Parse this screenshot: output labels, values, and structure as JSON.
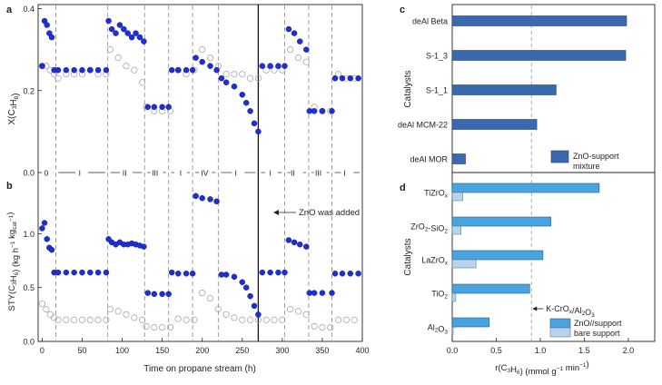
{
  "panels": {
    "a": "a",
    "b": "b",
    "c": "c",
    "d": "d"
  },
  "left": {
    "xlabel": "Time on propane stream (h)",
    "xticks": [
      0,
      50,
      100,
      150,
      200,
      250,
      300,
      350,
      400
    ],
    "a_ylabel": "X(C3H8)",
    "a_yticks": [
      "0.0",
      "0.2",
      "0.4"
    ],
    "b_ylabel": "STY(C3H6) (kg h−1 kgcat−1)",
    "b_yticks": [
      "0.0",
      "0.5",
      "1.0"
    ],
    "stage_labels": [
      {
        "label": "0",
        "t": 5
      },
      {
        "label": "I",
        "t": 47
      },
      {
        "label": "II",
        "t": 103
      },
      {
        "label": "III",
        "t": 141
      },
      {
        "label": "I",
        "t": 173
      },
      {
        "label": "IV",
        "t": 203
      },
      {
        "label": "I",
        "t": 242
      },
      {
        "label": "I",
        "t": 285
      },
      {
        "label": "II",
        "t": 313
      },
      {
        "label": "III",
        "t": 345
      },
      {
        "label": "I",
        "t": 378
      }
    ],
    "stage_boundaries_h": [
      17,
      82,
      128,
      158,
      188,
      220,
      270,
      303,
      333,
      362
    ],
    "zno_added_h": 270,
    "annotation": "ZnO was added"
  },
  "chart_data": [
    {
      "type": "scatter",
      "panel": "a",
      "xlabel": "Time on propane stream (h)",
      "ylabel": "X(C3H8)",
      "xlim": [
        -5,
        400
      ],
      "ylim": [
        0,
        0.41
      ],
      "series": [
        {
          "color": "#1f2fd6",
          "x": [
            0,
            3,
            6,
            9,
            12,
            15,
            20,
            30,
            40,
            50,
            60,
            70,
            80,
            83,
            87,
            92,
            97,
            102,
            107,
            112,
            117,
            122,
            127,
            132,
            140,
            150,
            158,
            162,
            170,
            180,
            188,
            192,
            200,
            210,
            218,
            224,
            230,
            240,
            250,
            255,
            260,
            265,
            270,
            275,
            285,
            295,
            303,
            308,
            315,
            322,
            330,
            334,
            340,
            350,
            362,
            366,
            375,
            385,
            395
          ],
          "y": [
            0.26,
            0.37,
            0.36,
            0.34,
            0.33,
            0.25,
            0.25,
            0.25,
            0.25,
            0.25,
            0.25,
            0.25,
            0.25,
            0.37,
            0.35,
            0.34,
            0.36,
            0.35,
            0.34,
            0.33,
            0.34,
            0.33,
            0.32,
            0.16,
            0.16,
            0.16,
            0.16,
            0.25,
            0.25,
            0.25,
            0.25,
            0.28,
            0.27,
            0.26,
            0.25,
            0.23,
            0.22,
            0.21,
            0.19,
            0.17,
            0.15,
            0.12,
            0.1,
            0.26,
            0.26,
            0.26,
            0.26,
            0.35,
            0.34,
            0.32,
            0.3,
            0.15,
            0.15,
            0.15,
            0.15,
            0.23,
            0.23,
            0.23,
            0.23
          ]
        },
        {
          "color": "#bbbbbb",
          "x": [
            0,
            5,
            10,
            15,
            20,
            30,
            40,
            50,
            60,
            70,
            80,
            85,
            95,
            105,
            115,
            125,
            130,
            140,
            150,
            160,
            170,
            180,
            190,
            200,
            210,
            220,
            230,
            240,
            250,
            260,
            270,
            280,
            290,
            300,
            310,
            320,
            330,
            340,
            350,
            360,
            370,
            380,
            390
          ],
          "y": [
            0.26,
            0.26,
            0.25,
            0.24,
            0.23,
            0.24,
            0.24,
            0.24,
            0.25,
            0.24,
            0.24,
            0.3,
            0.28,
            0.26,
            0.25,
            0.22,
            0.16,
            0.15,
            0.15,
            0.15,
            0.25,
            0.24,
            0.25,
            0.3,
            0.28,
            0.26,
            0.24,
            0.24,
            0.24,
            0.23,
            0.23,
            0.25,
            0.25,
            0.25,
            0.3,
            0.28,
            0.27,
            0.16,
            0.15,
            0.15,
            0.24,
            0.23,
            0.23
          ]
        }
      ]
    },
    {
      "type": "scatter",
      "panel": "b",
      "xlabel": "Time on propane stream (h)",
      "ylabel": "STY(C3H6) (kg h−1 kgcat−1)",
      "xlim": [
        -5,
        400
      ],
      "ylim": [
        0,
        1.45
      ],
      "series": [
        {
          "color": "#1f2fd6",
          "x": [
            0,
            3,
            6,
            9,
            12,
            15,
            20,
            30,
            40,
            50,
            60,
            70,
            80,
            83,
            87,
            92,
            97,
            102,
            107,
            112,
            117,
            122,
            127,
            132,
            140,
            150,
            158,
            162,
            170,
            180,
            188,
            192,
            200,
            210,
            218,
            224,
            230,
            240,
            250,
            255,
            260,
            265,
            270,
            275,
            285,
            295,
            303,
            308,
            315,
            322,
            330,
            334,
            340,
            350,
            362,
            366,
            375,
            385,
            395
          ],
          "y": [
            1.05,
            1.1,
            0.95,
            0.87,
            0.85,
            0.64,
            0.64,
            0.64,
            0.64,
            0.64,
            0.64,
            0.64,
            0.64,
            0.95,
            0.92,
            0.9,
            0.92,
            0.9,
            0.9,
            0.91,
            0.9,
            0.89,
            0.88,
            0.45,
            0.44,
            0.44,
            0.44,
            0.64,
            0.63,
            0.63,
            0.63,
            1.35,
            1.33,
            1.32,
            1.3,
            0.62,
            0.62,
            0.6,
            0.55,
            0.5,
            0.42,
            0.33,
            0.25,
            0.64,
            0.64,
            0.64,
            0.64,
            0.94,
            0.92,
            0.9,
            0.88,
            0.45,
            0.45,
            0.45,
            0.45,
            0.63,
            0.63,
            0.63,
            0.63
          ]
        },
        {
          "color": "#bbbbbb",
          "x": [
            0,
            5,
            10,
            15,
            20,
            30,
            40,
            50,
            60,
            70,
            80,
            85,
            95,
            105,
            115,
            125,
            130,
            140,
            150,
            160,
            170,
            180,
            190,
            200,
            210,
            220,
            230,
            240,
            250,
            260,
            270,
            280,
            290,
            300,
            310,
            320,
            330,
            340,
            350,
            360,
            370,
            380,
            390
          ],
          "y": [
            0.35,
            0.3,
            0.25,
            0.22,
            0.2,
            0.2,
            0.2,
            0.2,
            0.2,
            0.2,
            0.2,
            0.3,
            0.28,
            0.25,
            0.22,
            0.2,
            0.14,
            0.13,
            0.13,
            0.13,
            0.21,
            0.2,
            0.2,
            0.45,
            0.4,
            0.3,
            0.25,
            0.22,
            0.2,
            0.2,
            0.2,
            0.2,
            0.2,
            0.2,
            0.3,
            0.28,
            0.25,
            0.14,
            0.13,
            0.13,
            0.2,
            0.2,
            0.2
          ]
        }
      ]
    },
    {
      "type": "bar",
      "panel": "c",
      "orientation": "horizontal",
      "ylabel": "Catalysts",
      "categories": [
        "deAl Beta",
        "S-1_3",
        "S-1_1",
        "deAl MCM-22",
        "deAl MOR"
      ],
      "series": [
        {
          "name": "ZnO-support mixture",
          "color": "#3a69b0",
          "values": [
            1.98,
            1.97,
            1.18,
            0.96,
            0.15
          ]
        }
      ],
      "xlim": [
        0,
        2.3
      ],
      "reference_line": 0.9,
      "legend": "bottom-right"
    },
    {
      "type": "bar",
      "panel": "d",
      "orientation": "horizontal",
      "ylabel": "Catalysts",
      "xlabel": "r(C3H6) (mmol g−1 min−1)",
      "xticks": [
        "0.0",
        "0.5",
        "1.0",
        "1.5",
        "2.0"
      ],
      "categories": [
        "TiZrOx",
        "ZrO2-SiO2",
        "LaZrOx",
        "TiO2",
        "Al2O3"
      ],
      "series": [
        {
          "name": "ZnO//support",
          "color": "#4aa3de",
          "values": [
            1.67,
            1.12,
            1.03,
            0.88,
            0.42
          ]
        },
        {
          "name": "bare support",
          "color": "#b8d4ea",
          "values": [
            0.12,
            0.1,
            0.27,
            0.04,
            0.01
          ]
        }
      ],
      "xlim": [
        0,
        2.3
      ],
      "reference_line": 0.9,
      "reference_label": "K-CrOx/Al2O3",
      "legend": "bottom-right"
    }
  ]
}
